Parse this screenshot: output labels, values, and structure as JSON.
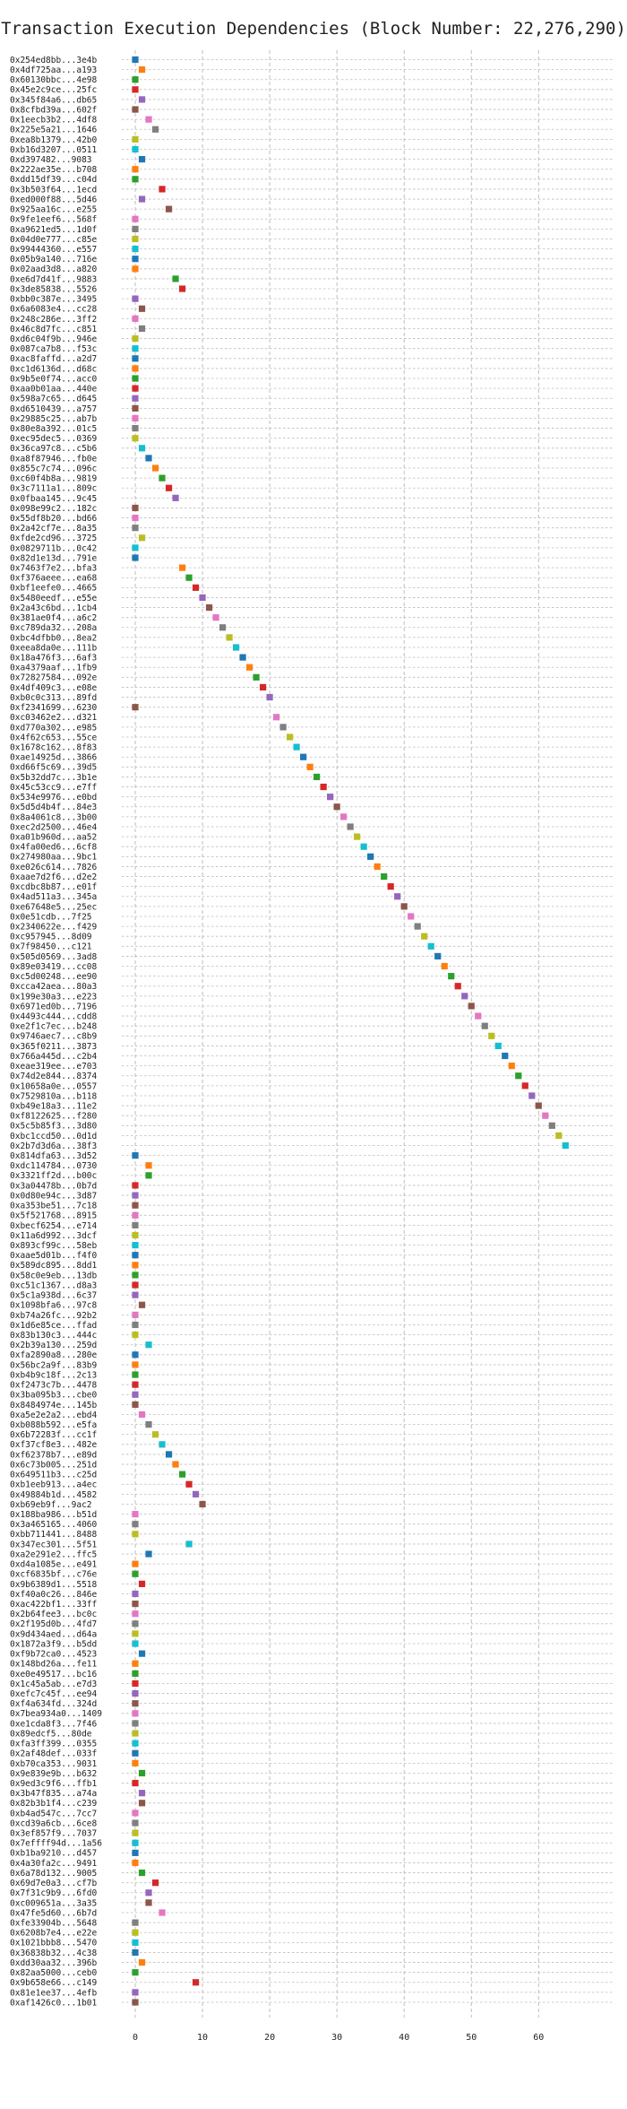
{
  "chart_data": {
    "type": "scatter",
    "title": "Transaction Execution Dependencies (Block Number: 22,276,290)",
    "xlim": [
      0,
      65
    ],
    "x_ticks": [
      0,
      10,
      20,
      30,
      40,
      50,
      60
    ],
    "grid": "dashed, both axes",
    "palette": [
      "#1f77b4",
      "#ff7f0e",
      "#2ca02c",
      "#d62728",
      "#9467bd",
      "#8c564b",
      "#e377c2",
      "#7f7f7f",
      "#bcbd22",
      "#17becf"
    ],
    "transactions": [
      "0x254ed8bb...3e4b",
      "0x4df725aa...a193",
      "0x60130bbc...4e98",
      "0x45e2c9ce...25fc",
      "0x345f84a6...db65",
      "0x8cfbd39a...602f",
      "0x1eecb3b2...4df8",
      "0x225e5a21...1646",
      "0xea8b1379...42b0",
      "0xb16d3207...0511",
      "0xd397482...9083",
      "0x222ae35e...b708",
      "0xdd15df39...c04d",
      "0x3b503f64...1ecd",
      "0xed000f88...5d46",
      "0x925aa16c...e255",
      "0x9fe1eef6...568f",
      "0xa9621ed5...1d0f",
      "0x04d0e777...c85e",
      "0x99444360...e557",
      "0x05b9a140...716e",
      "0x02aad3d8...a820",
      "0xe6d7d41f...9883",
      "0x3de85838...5526",
      "0xbb0c387e...3495",
      "0x6a6083e4...cc28",
      "0x248c286e...3ff2",
      "0x46c8d7fc...c851",
      "0xd6c04f9b...946e",
      "0x087ca7b8...f53c",
      "0xac8faffd...a2d7",
      "0xc1d6136d...d68c",
      "0x9b5e0f74...acc0",
      "0xaa0b01aa...440e",
      "0x598a7c65...d645",
      "0xd6510439...a757",
      "0x29885c25...ab7b",
      "0x80e8a392...01c5",
      "0xec95dec5...0369",
      "0x36ca97c8...c5b6",
      "0xa8f87946...fb0e",
      "0x855c7c74...096c",
      "0xc60f4b8a...9819",
      "0x3c7111a1...809c",
      "0x0fbaa145...9c45",
      "0x098e99c2...182c",
      "0x55df8b20...bd66",
      "0x2a42cf7e...8a35",
      "0xfde2cd96...3725",
      "0x0829711b...0c42",
      "0x82d1e13d...791e",
      "0x7463f7e2...bfa3",
      "0xf376aeee...ea68",
      "0xbf1eefe0...4665",
      "0x5480eedf...e55e",
      "0x2a43c6bd...1cb4",
      "0x381ae0f4...a6c2",
      "0xc789da32...208a",
      "0xbc4dfbb0...8ea2",
      "0xeea8da0e...111b",
      "0x18a476f3...6af3",
      "0xa4379aaf...1fb9",
      "0x72827584...092e",
      "0x4df409c3...e08e",
      "0xb0c0c313...89fd",
      "0xf2341699...6230",
      "0xc03462e2...d321",
      "0xd770a302...e985",
      "0x4f62c653...55ce",
      "0x1678c162...8f83",
      "0xae14925d...3866",
      "0xd66f5c69...39d5",
      "0x5b32dd7c...3b1e",
      "0x45c53cc9...e7ff",
      "0x534e9976...e0bd",
      "0x5d5d4b4f...84e3",
      "0x8a4061c8...3b00",
      "0xec2d2500...46e4",
      "0xa01b960d...aa52",
      "0x4fa00ed6...6cf8",
      "0x274980aa...9bc1",
      "0xe026c614...7826",
      "0xaae7d2f6...d2e2",
      "0xcdbc8b87...e01f",
      "0x4ad511a3...345a",
      "0xe67648e5...25ec",
      "0x0e51cdb...7f25",
      "0x2340622e...f429",
      "0xc957945...8d09",
      "0x7f98450...c121",
      "0x505d0569...3ad8",
      "0x89e03419...cc08",
      "0xc5d00248...ee90",
      "0xcca42aea...80a3",
      "0x199e30a3...e223",
      "0x6971ed0b...7196",
      "0x4493c444...cdd8",
      "0xe2f1c7ec...b248",
      "0x9746aec7...c8b9",
      "0x365f0211...3873",
      "0x766a445d...c2b4",
      "0xeae319ee...e703",
      "0x74d2e844...8374",
      "0x10658a0e...0557",
      "0x7529810a...b118",
      "0xb49e18a3...11e2",
      "0xf8122625...f280",
      "0x5c5b85f3...3d80",
      "0xbc1ccd50...0d1d",
      "0x2b7d3d6a...38f3",
      "0x814dfa63...3d52",
      "0xdc114784...0730",
      "0x3321ff2d...b00c",
      "0x3a04478b...0b7d",
      "0x0d80e94c...3d87",
      "0xa353be51...7c18",
      "0x5f521768...8915",
      "0xbecf6254...e714",
      "0x11a6d992...3dcf",
      "0x893cf99c...58eb",
      "0xaae5d01b...f4f0",
      "0x589dc895...8dd1",
      "0x58c0e9eb...13db",
      "0xc51c1367...d8a3",
      "0x5c1a938d...6c37",
      "0x1098bfa6...97c8",
      "0xb74a26fc...92b2",
      "0x1d6e85ce...ffad",
      "0x83b130c3...444c",
      "0x2b39a130...259d",
      "0xfa2890a8...280e",
      "0x56bc2a9f...83b9",
      "0xb4b9c18f...2c13",
      "0xf2473c7b...4478",
      "0x3ba095b3...cbe0",
      "0x8484974e...145b",
      "0xa5e2e2a2...ebd4",
      "0xb088b592...e5fa",
      "0x6b72283f...cc1f",
      "0xf37cf8e3...482e",
      "0xf62378b7...e89d",
      "0x6c73b005...251d",
      "0x649511b3...c25d",
      "0xb1eeb913...a4ec",
      "0x49884b1d...4582",
      "0xb69eb9f...9ac2",
      "0x188ba986...b51d",
      "0x3a465165...4060",
      "0xbb711441...8488",
      "0x347ec301...5f51",
      "0xa2e291e2...ffc5",
      "0xd4a1085e...e491",
      "0xcf6835bf...c76e",
      "0x9b6389d1...5518",
      "0xf40a0c26...846e",
      "0xac422bf1...33ff",
      "0x2b64fee3...bc0c",
      "0x2f195d0b...4fd7",
      "0x9d434aed...d64a",
      "0x1872a3f9...b5dd",
      "0xf9b72ca0...4523",
      "0x148bd26a...fe11",
      "0xe0e49517...bc16",
      "0x1c45a5ab...e7d3",
      "0xefc7c45f...ee94",
      "0xf4a634fd...324d",
      "0x7bea934a0...1409",
      "0xe1cda8f3...7f46",
      "0x89edcf5...80de",
      "0xfa3ff399...0355",
      "0x2af48def...033f",
      "0xb70ca353...9031",
      "0x9e839e9b...b632",
      "0x9ed3c9f6...ffb1",
      "0x3b47f835...a74a",
      "0x82b3b1f4...c239",
      "0xb4ad547c...7cc7",
      "0xcd39a6cb...6ce8",
      "0x3ef857f9...7037",
      "0x7effff94d...1a56",
      "0xb1ba9210...d457",
      "0x4a30fa2c...9491",
      "0x6a78d132...9005",
      "0x69d7e0a3...cf7b",
      "0x7f31c9b9...6fd0",
      "0xc009651a...3a35",
      "0x47fe5d60...6b7d",
      "0xfe33904b...5648",
      "0x6208b7e4...e22e",
      "0x1021bbb8...5470",
      "0x36838b32...4c38",
      "0xdd30aa32...396b",
      "0x82aa5000...ceb0",
      "0x9b658e66...c149",
      "0x81e1ee37...4efb",
      "0xaf1426c0...1b01"
    ],
    "execution_slot": [
      0,
      1,
      0,
      0,
      1,
      0,
      2,
      3,
      0,
      0,
      1,
      0,
      0,
      4,
      1,
      5,
      0,
      0,
      0,
      0,
      0,
      0,
      6,
      7,
      0,
      1,
      0,
      1,
      0,
      0,
      0,
      0,
      0,
      0,
      0,
      0,
      0,
      0,
      0,
      1,
      2,
      3,
      4,
      5,
      6,
      0,
      0,
      0,
      1,
      0,
      0,
      7,
      8,
      9,
      10,
      11,
      12,
      13,
      14,
      15,
      16,
      17,
      18,
      19,
      20,
      0,
      21,
      22,
      23,
      24,
      25,
      26,
      27,
      28,
      29,
      30,
      31,
      32,
      33,
      34,
      35,
      36,
      37,
      38,
      39,
      40,
      41,
      42,
      43,
      44,
      45,
      46,
      47,
      48,
      49,
      50,
      51,
      52,
      53,
      54,
      55,
      56,
      57,
      58,
      59,
      60,
      61,
      62,
      63,
      64,
      0,
      2,
      2,
      0,
      0,
      0,
      0,
      0,
      0,
      0,
      0,
      0,
      0,
      0,
      0,
      1,
      0,
      0,
      0,
      2,
      0,
      0,
      0,
      0,
      0,
      0,
      1,
      2,
      3,
      4,
      5,
      6,
      7,
      8,
      9,
      10,
      0,
      0,
      0,
      8,
      2,
      0,
      0,
      1,
      0,
      0,
      0,
      0,
      0,
      0,
      1,
      0,
      0,
      0,
      0,
      0,
      0,
      0,
      0,
      0,
      0,
      0,
      1,
      0,
      1,
      1,
      0,
      0,
      0,
      0,
      0,
      0,
      1,
      3,
      2,
      2,
      4,
      0,
      0,
      0,
      0,
      1,
      0,
      9,
      0,
      0
    ]
  }
}
